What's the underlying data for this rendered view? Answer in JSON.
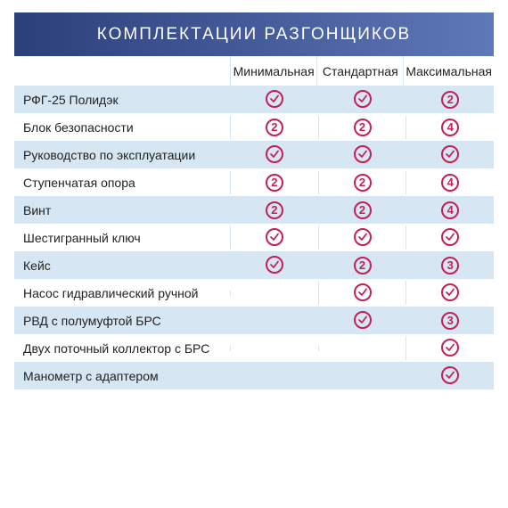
{
  "styling": {
    "header_gradient_from": "#2b3f7a",
    "header_gradient_to": "#5f78b9",
    "row_alt_bg": "#d6e6f2",
    "row_bg": "#ffffff",
    "col_border": "#d6e6f2",
    "symbol_color": "#c41f58",
    "text_color": "#222222",
    "header_text_color": "#ffffff",
    "header_font_size": 19,
    "body_font_size": 14,
    "letter_spacing": 2,
    "label_col_width_pct": 45
  },
  "header": "КОМПЛЕКТАЦИИ РАЗГОНЩИКОВ",
  "columns": [
    "Минимальная",
    "Стандартная",
    "Максимальная"
  ],
  "rows": [
    {
      "label": "РФГ-25 Полидэк",
      "cells": [
        "check",
        "check",
        "2"
      ]
    },
    {
      "label": "Блок безопасности",
      "cells": [
        "2",
        "2",
        "4"
      ]
    },
    {
      "label": "Руководство по эксплуатации",
      "cells": [
        "check",
        "check",
        "check"
      ]
    },
    {
      "label": "Ступенчатая опора",
      "cells": [
        "2",
        "2",
        "4"
      ]
    },
    {
      "label": "Винт",
      "cells": [
        "2",
        "2",
        "4"
      ]
    },
    {
      "label": "Шестигранный ключ",
      "cells": [
        "check",
        "check",
        "check"
      ]
    },
    {
      "label": "Кейс",
      "cells": [
        "check",
        "2",
        "3"
      ]
    },
    {
      "label": "Насос гидравлический ручной",
      "cells": [
        "",
        "check",
        "check"
      ]
    },
    {
      "label": "РВД с полумуфтой БРС",
      "cells": [
        "",
        "check",
        "3"
      ]
    },
    {
      "label": "Двух поточный коллектор с БРС",
      "cells": [
        "",
        "",
        "check"
      ]
    },
    {
      "label": "Манометр с адаптером",
      "cells": [
        "",
        "",
        "check"
      ]
    }
  ]
}
